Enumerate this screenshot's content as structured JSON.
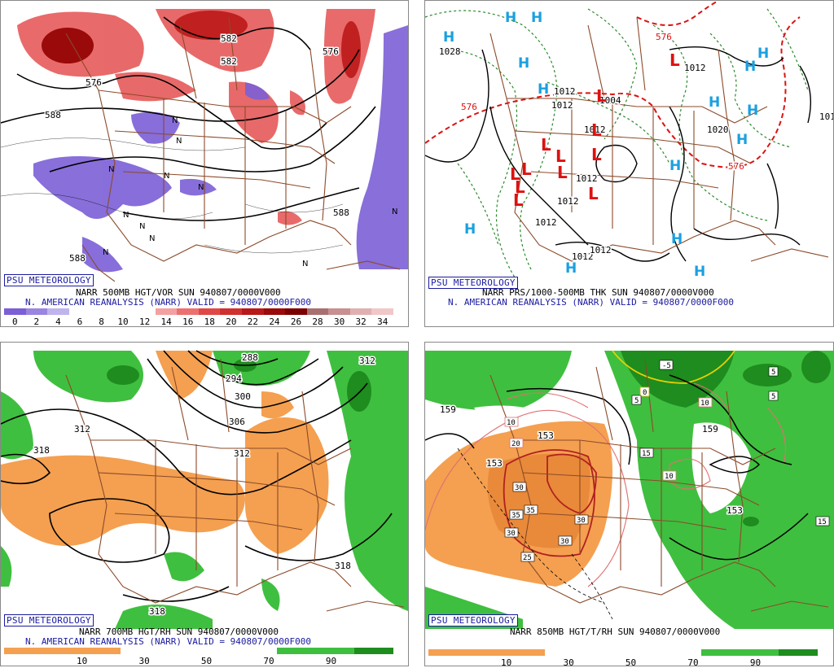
{
  "panels": [
    {
      "id": "tl",
      "badge": "PSU METEOROLOGY",
      "caption_line1": "NARR 500MB HGT/VOR SUN 940807/0000V000",
      "caption_line2": "N. AMERICAN REANALYSIS (NARR) VALID = 940807/0000F000",
      "scale_labels": [
        "0",
        "2",
        "4",
        "6",
        "8",
        "10",
        "12",
        "14",
        "16",
        "18",
        "20",
        "22",
        "24",
        "26",
        "28",
        "30",
        "32",
        "34"
      ],
      "scale_colors": [
        "#7b5fd6",
        "#9a85e0",
        "#c0b4ee",
        "#ffffff",
        "#ffffff",
        "#ffffff",
        "#ffffff",
        "#f4a0a0",
        "#ec7070",
        "#e04848",
        "#d03030",
        "#b81818",
        "#9a0a0a",
        "#7a0000",
        "#a87070",
        "#c89090",
        "#e0b0b0",
        "#f0c8c8"
      ],
      "contour_labels": [
        "576",
        "582",
        "588",
        "588",
        "588",
        "576",
        "582",
        "576",
        "588"
      ],
      "vort_marks": [
        "N",
        "N",
        "N",
        "N",
        "N",
        "N",
        "N",
        "N",
        "N",
        "N",
        "N"
      ]
    },
    {
      "id": "tr",
      "badge": "PSU METEOROLOGY",
      "caption_line1": "NARR PRS/1000-500MB THK SUN 940807/0000V000",
      "caption_line2": "N. AMERICAN REANALYSIS (NARR) VALID = 940807/0000F000",
      "contour_labels": [
        "1028",
        "1012",
        "1012",
        "1004",
        "1012",
        "1012",
        "1012",
        "1012",
        "1012",
        "1020",
        "1012",
        "1012",
        "576",
        "576",
        "576",
        "101"
      ],
      "highs": [
        "H",
        "H",
        "H",
        "H",
        "H",
        "H",
        "H",
        "H",
        "H",
        "H",
        "H",
        "H",
        "H",
        "H",
        "H"
      ],
      "lows": [
        "L",
        "L",
        "L",
        "L",
        "L",
        "L",
        "L",
        "L",
        "L",
        "L",
        "L",
        "L"
      ]
    },
    {
      "id": "bl",
      "badge": "PSU METEOROLOGY",
      "caption_line1": "NARR 700MB HGT/RH SUN 940807/0000V000",
      "caption_line2": "N. AMERICAN REANALYSIS (NARR) VALID = 940807/0000F000",
      "scale_labels": [
        "10",
        "30",
        "50",
        "70",
        "90"
      ],
      "contour_labels": [
        "288",
        "294",
        "300",
        "306",
        "312",
        "312",
        "318",
        "318",
        "318",
        "312"
      ]
    },
    {
      "id": "br",
      "badge": "PSU METEOROLOGY",
      "caption_line1": "NARR 850MB HGT/T/RH SUN 940807/0000V000",
      "scale_labels": [
        "10",
        "30",
        "50",
        "70",
        "90"
      ],
      "contour_labels": [
        "159",
        "153",
        "153",
        "159",
        "153",
        "15"
      ],
      "temp_labels": [
        "-5",
        "0",
        "5",
        "5",
        "5",
        "10",
        "10",
        "10",
        "15",
        "20",
        "25",
        "30",
        "30",
        "30",
        "30",
        "35",
        "35"
      ]
    }
  ],
  "colors": {
    "purple": "#7b5fd6",
    "red_shade": "#e55050",
    "green_shade": "#3fbf3f",
    "dark_green": "#1e8c1e",
    "orange_shade": "#f4a050",
    "state_lines": "#8b4a2a",
    "cyan_H": "#1aa0e0",
    "red_L": "#dd1111",
    "thickness": "#dd1111",
    "pressure_dash": "#2a8a2a"
  }
}
